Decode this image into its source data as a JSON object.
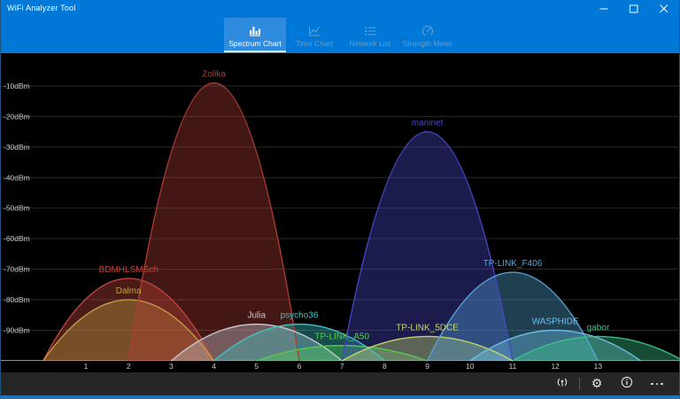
{
  "window": {
    "title": "WiFi Analyzer Tool",
    "accent_color": "#0078d7",
    "controls": [
      {
        "name": "minimize"
      },
      {
        "name": "maximize"
      },
      {
        "name": "close"
      }
    ]
  },
  "tabs": [
    {
      "label": "Spectrum Chart",
      "icon": "bar-chart-icon",
      "selected": true
    },
    {
      "label": "Time Chart",
      "icon": "line-chart-icon",
      "selected": false
    },
    {
      "label": "Network List",
      "icon": "list-icon",
      "selected": false
    },
    {
      "label": "Strength Meter",
      "icon": "gauge-icon",
      "selected": false
    }
  ],
  "chart_data": {
    "type": "area",
    "title": "",
    "xlabel": "",
    "ylabel": "",
    "grid": true,
    "background": "#000000",
    "grid_color": "#2b2b2b",
    "axis_color": "#8f8f8f",
    "tick_label_color": "#c8c8c8",
    "x_ticks": [
      1,
      2,
      3,
      4,
      5,
      6,
      7,
      8,
      9,
      10,
      11,
      12,
      13
    ],
    "y_ticks": [
      -10,
      -20,
      -30,
      -40,
      -50,
      -60,
      -70,
      -80,
      -90
    ],
    "y_tick_labels": [
      "-10dBm",
      "-20dBm",
      "-30dBm",
      "-40dBm",
      "-50dBm",
      "-60dBm",
      "-70dBm",
      "-80dBm",
      "-90dBm"
    ],
    "xlim": [
      -1,
      15
    ],
    "ylim": [
      -100,
      -5
    ],
    "curve_halfwidth_channels": 2,
    "networks": [
      {
        "name": "BDMHLSMSch",
        "channel": 2,
        "signal_dbm": -73,
        "color": "#c4463e"
      },
      {
        "name": "Dalma",
        "channel": 2,
        "signal_dbm": -80,
        "color": "#c2a246"
      },
      {
        "name": "Zolika",
        "channel": 4,
        "signal_dbm": -9,
        "color": "#b03d35"
      },
      {
        "name": "Julia",
        "channel": 5,
        "signal_dbm": -88,
        "color": "#c9c9d4"
      },
      {
        "name": "psycho36",
        "channel": 6,
        "signal_dbm": -88,
        "color": "#3cc6c9"
      },
      {
        "name": "TP-LINK_A50",
        "channel": 7,
        "signal_dbm": -95,
        "color": "#52cf52"
      },
      {
        "name": "maninet",
        "channel": 9,
        "signal_dbm": -25,
        "color": "#4747c8"
      },
      {
        "name": "TP-LINK_5DCE",
        "channel": 9,
        "signal_dbm": -92,
        "color": "#c8da69"
      },
      {
        "name": "TP-LINK_F406",
        "channel": 11,
        "signal_dbm": -71,
        "color": "#54a6d6"
      },
      {
        "name": "WASPHIDE",
        "channel": 12,
        "signal_dbm": -90,
        "color": "#6ec2ea"
      },
      {
        "name": "gabor",
        "channel": 13,
        "signal_dbm": -92,
        "color": "#3cc487"
      }
    ]
  },
  "status_bar": {
    "buttons": [
      {
        "name": "wifi-signal"
      },
      {
        "name": "settings"
      },
      {
        "name": "info"
      },
      {
        "name": "more"
      }
    ]
  }
}
